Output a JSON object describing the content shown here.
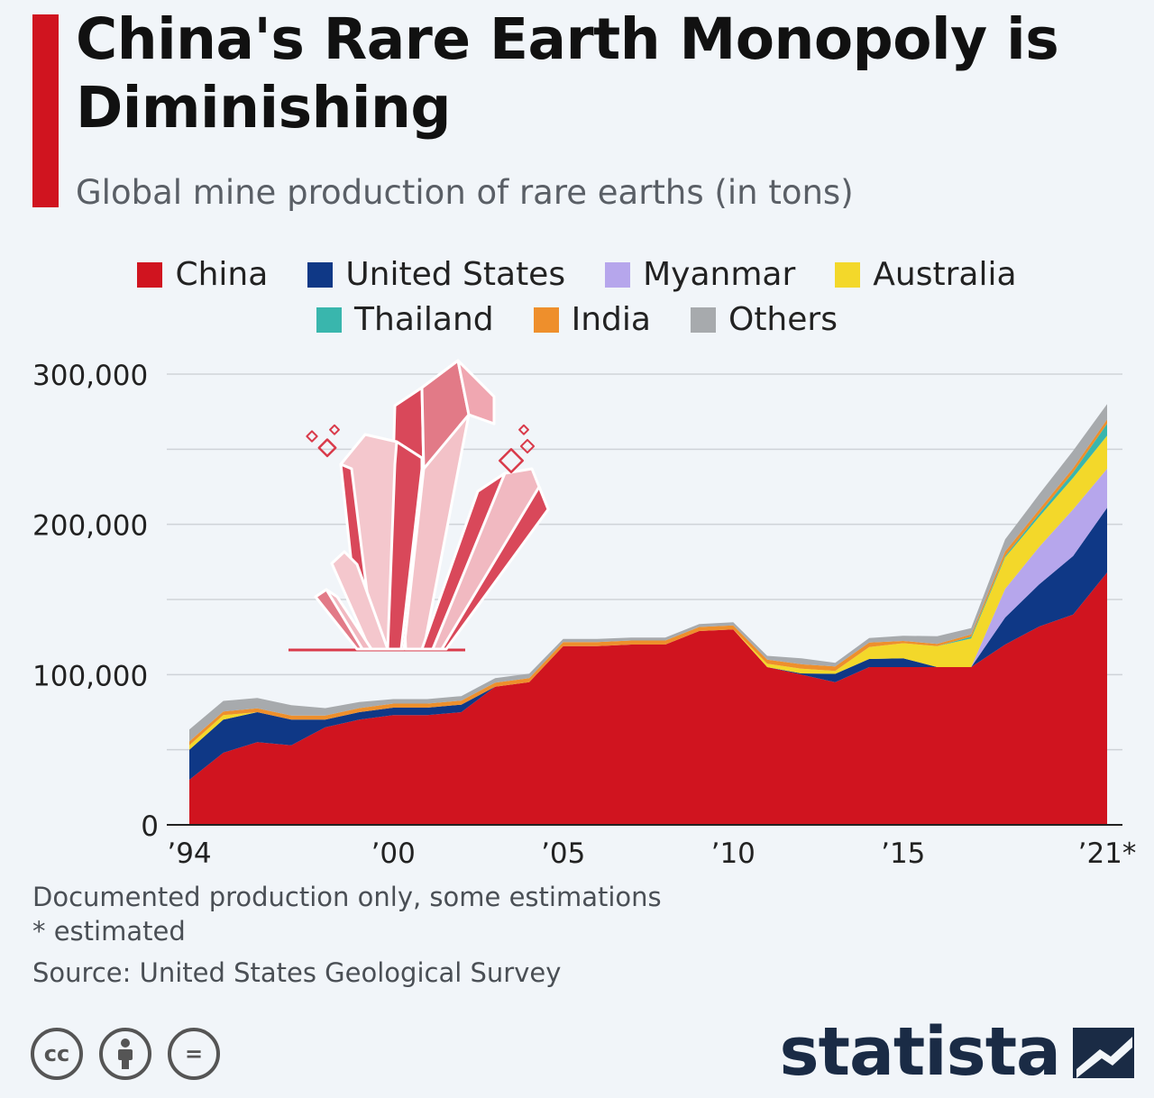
{
  "header": {
    "title": "China's Rare Earth Monopoly is Diminishing",
    "subtitle": "Global mine production of rare earths (in tons)"
  },
  "colors": {
    "accent": "#d0141f",
    "China": "#d0141f",
    "United States": "#0f3886",
    "Myanmar": "#b6a6ec",
    "Australia": "#f3d82a",
    "Thailand": "#39b6ad",
    "India": "#ee8f2c",
    "Others": "#a7aaad",
    "grid": "#cfd3d8",
    "illustration": "#d93a4a"
  },
  "chart_data": {
    "type": "area",
    "stacked": true,
    "x": [
      1994,
      1995,
      1996,
      1997,
      1998,
      1999,
      2000,
      2001,
      2002,
      2003,
      2004,
      2005,
      2006,
      2007,
      2008,
      2009,
      2010,
      2011,
      2012,
      2013,
      2014,
      2015,
      2016,
      2017,
      2018,
      2019,
      2020,
      2021
    ],
    "x_ticks": [
      {
        "value": 1994,
        "label": "’94"
      },
      {
        "value": 2000,
        "label": "’00"
      },
      {
        "value": 2005,
        "label": "’05"
      },
      {
        "value": 2010,
        "label": "’10"
      },
      {
        "value": 2015,
        "label": "’15"
      },
      {
        "value": 2021,
        "label": "’21*"
      }
    ],
    "y_ticks": [
      {
        "value": 0,
        "label": "0"
      },
      {
        "value": 100000,
        "label": "100,000"
      },
      {
        "value": 200000,
        "label": "200,000"
      },
      {
        "value": 300000,
        "label": "300,000"
      }
    ],
    "ylim": [
      0,
      300000
    ],
    "grid": true,
    "legend_position": "top",
    "series": [
      {
        "name": "China",
        "values": [
          30000,
          48000,
          55000,
          53000,
          65000,
          70000,
          73000,
          73000,
          75000,
          92000,
          95000,
          119000,
          119000,
          120000,
          120000,
          129000,
          130000,
          105000,
          100000,
          95000,
          105000,
          105000,
          105000,
          105000,
          120000,
          132000,
          140000,
          168000
        ]
      },
      {
        "name": "United States",
        "values": [
          20000,
          22000,
          20000,
          17000,
          5000,
          5000,
          5000,
          5000,
          5000,
          0,
          0,
          0,
          0,
          0,
          0,
          0,
          0,
          0,
          800,
          5500,
          5400,
          5900,
          0,
          0,
          18000,
          28000,
          39000,
          43000
        ]
      },
      {
        "name": "Myanmar",
        "values": [
          0,
          0,
          0,
          0,
          0,
          0,
          0,
          0,
          0,
          0,
          0,
          0,
          0,
          0,
          0,
          0,
          0,
          0,
          0,
          0,
          0,
          0,
          0,
          0,
          19000,
          25000,
          31000,
          26000
        ]
      },
      {
        "name": "Australia",
        "values": [
          3000,
          3000,
          0,
          0,
          0,
          0,
          0,
          0,
          0,
          0,
          0,
          0,
          0,
          0,
          0,
          0,
          0,
          2200,
          3200,
          2000,
          8000,
          10000,
          14000,
          19000,
          21000,
          20000,
          21000,
          22000
        ]
      },
      {
        "name": "Thailand",
        "values": [
          0,
          0,
          0,
          0,
          0,
          0,
          0,
          0,
          0,
          0,
          0,
          0,
          0,
          0,
          0,
          0,
          0,
          0,
          0,
          0,
          0,
          0,
          0,
          1300,
          1000,
          2000,
          3600,
          8000
        ]
      },
      {
        "name": "India",
        "values": [
          2500,
          2500,
          2500,
          2700,
          2700,
          2700,
          2700,
          2700,
          2700,
          2700,
          2700,
          2700,
          2700,
          2700,
          2700,
          2700,
          2800,
          2800,
          2900,
          2900,
          3000,
          1500,
          1500,
          1500,
          2900,
          2900,
          2900,
          2900
        ]
      },
      {
        "name": "Others",
        "values": [
          8000,
          7000,
          7000,
          7000,
          5000,
          4000,
          3000,
          3000,
          3000,
          3000,
          3000,
          2000,
          2000,
          2000,
          2000,
          2000,
          2000,
          2500,
          4000,
          2500,
          3000,
          3500,
          5000,
          4200,
          8100,
          10100,
          11500,
          10100
        ]
      }
    ]
  },
  "notes": {
    "line1": "Documented production only, some estimations",
    "line2": "* estimated",
    "source": "Source: United States Geological Survey"
  },
  "license_icons": {
    "cc": "cc",
    "by": "person-icon",
    "nd": "="
  },
  "brand": {
    "name": "statista"
  }
}
